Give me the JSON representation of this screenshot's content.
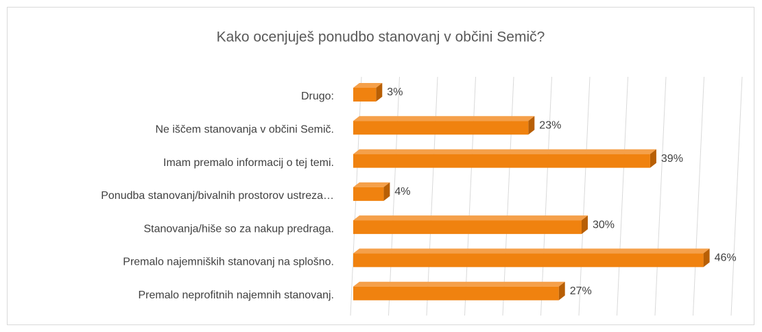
{
  "chart_data": {
    "type": "bar3d_horizontal",
    "title": "Kako ocenjuješ ponudbo stanovanj v občini Semič?",
    "categories": [
      "Drugo:",
      "Ne iščem stanovanja v občini Semič.",
      "Imam premalo informacij o tej temi.",
      "Ponudba stanovanj/bivalnih prostorov ustreza…",
      "Stanovanja/hiše so za nakup predraga.",
      "Premalo najemniških stanovanj na splošno.",
      "Premalo neprofitnih najemnih stanovanj."
    ],
    "values": [
      3,
      23,
      39,
      4,
      30,
      46,
      27
    ],
    "value_labels": [
      "3%",
      "23%",
      "39%",
      "4%",
      "30%",
      "46%",
      "27%"
    ],
    "color": "#f0820f",
    "xlim": [
      0,
      50
    ],
    "xticks": [
      0,
      5,
      10,
      15,
      20,
      25,
      30,
      35,
      40,
      45,
      50
    ],
    "grid": true
  }
}
